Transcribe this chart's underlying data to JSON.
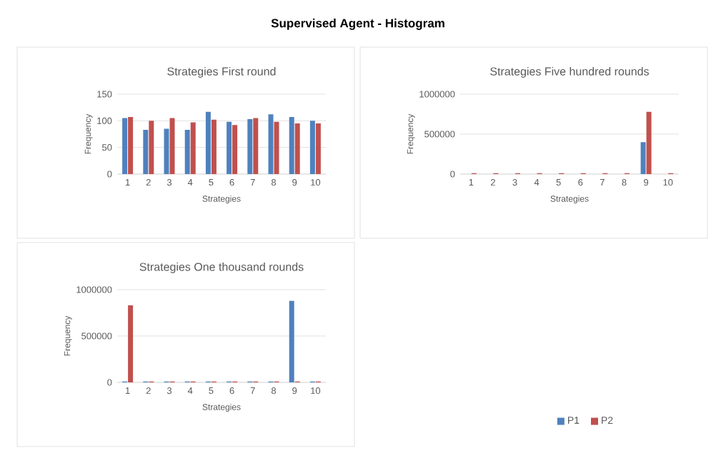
{
  "chart_data": [
    {
      "type": "bar",
      "title": "Strategies First round",
      "annotations": [
        "Supervised Agent - Histogram"
      ],
      "xlabel": "Strategies",
      "ylabel": "Frequency",
      "categories": [
        "1",
        "2",
        "3",
        "4",
        "5",
        "6",
        "7",
        "8",
        "9",
        "10"
      ],
      "ylim": [
        0,
        150
      ],
      "yticks": [
        0,
        50,
        100,
        150
      ],
      "grid": "y",
      "series": [
        {
          "color": "#4f81bd",
          "values": [
            105,
            83,
            85,
            83,
            117,
            98,
            103,
            112,
            107,
            100
          ]
        },
        {
          "color": "#c0504d",
          "values": [
            107,
            100,
            105,
            97,
            102,
            92,
            105,
            98,
            95,
            95
          ]
        }
      ]
    },
    {
      "type": "bar",
      "title": "Strategies Five hundred rounds",
      "xlabel": "Strategies",
      "ylabel": "Frequency",
      "categories": [
        "1",
        "2",
        "3",
        "4",
        "5",
        "6",
        "7",
        "8",
        "9",
        "10"
      ],
      "ylim": [
        0,
        1000000
      ],
      "yticks": [
        0,
        500000,
        1000000
      ],
      "grid": "y",
      "series": [
        {
          "color": "#4f81bd",
          "values": [
            0,
            0,
            0,
            0,
            0,
            0,
            0,
            0,
            400000,
            0
          ]
        },
        {
          "color": "#c0504d",
          "values": [
            10000,
            10000,
            10000,
            10000,
            10000,
            10000,
            10000,
            10000,
            780000,
            10000
          ]
        }
      ]
    },
    {
      "type": "bar",
      "title": "Strategies One thousand rounds",
      "xlabel": "Strategies",
      "ylabel": "Frequency",
      "categories": [
        "1",
        "2",
        "3",
        "4",
        "5",
        "6",
        "7",
        "8",
        "9",
        "10"
      ],
      "ylim": [
        0,
        1000000
      ],
      "yticks": [
        0,
        500000,
        1000000
      ],
      "grid": "y",
      "legend": "bottom right",
      "series": [
        {
          "name": "P1",
          "color": "#4f81bd",
          "values": [
            10000,
            10000,
            10000,
            10000,
            10000,
            10000,
            10000,
            10000,
            880000,
            10000
          ]
        },
        {
          "name": "P2",
          "color": "#c0504d",
          "values": [
            830000,
            10000,
            10000,
            10000,
            10000,
            10000,
            10000,
            10000,
            10000,
            10000
          ]
        }
      ]
    }
  ]
}
